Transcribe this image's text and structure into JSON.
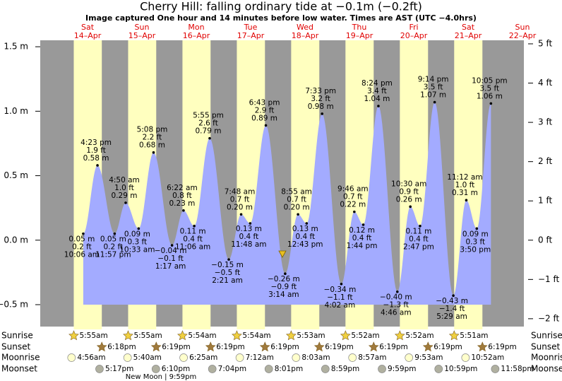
{
  "chart_data": {
    "type": "area",
    "title": "Cherry Hill: falling  ordinary tide at −0.1m (−0.2ft)",
    "subtitle": "Image captured One hour and 14 minutes before low water. Times are AST (UTC −4.0hrs)",
    "days": [
      {
        "weekday": "Sat",
        "date": "14–Apr"
      },
      {
        "weekday": "Sun",
        "date": "15–Apr"
      },
      {
        "weekday": "Mon",
        "date": "16–Apr"
      },
      {
        "weekday": "Tue",
        "date": "17–Apr"
      },
      {
        "weekday": "Wed",
        "date": "18–Apr"
      },
      {
        "weekday": "Thu",
        "date": "19–Apr"
      },
      {
        "weekday": "Fri",
        "date": "20–Apr"
      },
      {
        "weekday": "Sat",
        "date": "21–Apr"
      },
      {
        "weekday": "Sun",
        "date": "22–Apr"
      }
    ],
    "ylim": [
      -0.67,
      1.55
    ],
    "yticks": [
      {
        "value": 1.5,
        "label": "1.5 m"
      },
      {
        "value": 1.0,
        "label": "1.0 m"
      },
      {
        "value": 0.5,
        "label": "0.5 m"
      },
      {
        "value": 0.0,
        "label": "0.0 m"
      },
      {
        "value": -0.5,
        "label": "−0.5 m"
      }
    ],
    "y2lim": [
      -2.2,
      5.09
    ],
    "y2ticks": [
      {
        "value": 5,
        "label": "5 ft"
      },
      {
        "value": 4,
        "label": "4 ft"
      },
      {
        "value": 3,
        "label": "3 ft"
      },
      {
        "value": 2,
        "label": "2 ft"
      },
      {
        "value": 1,
        "label": "1 ft"
      },
      {
        "value": 0,
        "label": "0 ft"
      },
      {
        "value": -1,
        "label": "−1 ft"
      },
      {
        "value": -2,
        "label": "−2 ft"
      }
    ],
    "color": "#a3abff",
    "events": {
      "times": [
        "10:06 am",
        "4:23 pm",
        "11:57 pm",
        "4:50 am",
        "10:33 am",
        "5:08 pm",
        "1:17 am",
        "6:22 am",
        "11:06 am",
        "5:55 pm",
        "2:21 am",
        "7:48 am",
        "11:48 am",
        "6:43 pm",
        "3:14 am",
        "8:55 am",
        "12:43 pm",
        "7:33 pm",
        "4:02 am",
        "9:46 am",
        "1:44 pm",
        "8:24 pm",
        "4:46 am",
        "10:30 am",
        "2:47 pm",
        "9:14 pm",
        "5:29 am",
        "11:12 am",
        "3:50 pm",
        "10:05 pm"
      ],
      "values": [
        0.05,
        0.58,
        0.05,
        0.29,
        0.09,
        0.68,
        -0.04,
        0.23,
        0.11,
        0.79,
        -0.15,
        0.2,
        0.13,
        0.89,
        -0.26,
        0.2,
        0.13,
        0.98,
        -0.34,
        0.22,
        0.12,
        1.04,
        -0.4,
        0.26,
        0.11,
        1.07,
        -0.43,
        0.31,
        0.09,
        1.06
      ],
      "value_labels": [
        "0.05 m",
        "0.58 m",
        "0.05 m",
        "0.29 m",
        "0.09 m",
        "0.68 m",
        "−0.04 m",
        "0.23 m",
        "0.11 m",
        "0.79 m",
        "−0.15 m",
        "0.20 m",
        "0.13 m",
        "0.89 m",
        "−0.26 m",
        "0.20 m",
        "0.13 m",
        "0.98 m",
        "−0.34 m",
        "0.22 m",
        "0.12 m",
        "1.04 m",
        "−0.40 m",
        "0.26 m",
        "0.11 m",
        "1.07 m",
        "−0.43 m",
        "0.31 m",
        "0.09 m",
        "1.06 m"
      ],
      "ft_labels": [
        "0.2 ft",
        "1.9 ft",
        "0.2 ft",
        "1.0 ft",
        "0.3 ft",
        "2.2 ft",
        "−0.1 ft",
        "0.8 ft",
        "0.4 ft",
        "2.6 ft",
        "−0.5 ft",
        "0.7 ft",
        "0.4 ft",
        "2.9 ft",
        "−0.9 ft",
        "0.7 ft",
        "0.4 ft",
        "3.2 ft",
        "−1.1 ft",
        "0.7 ft",
        "0.4 ft",
        "3.4 ft",
        "−1.3 ft",
        "0.9 ft",
        "0.4 ft",
        "3.5 ft",
        "−1.4 ft",
        "1.0 ft",
        "0.3 ft",
        "3.5 ft"
      ]
    },
    "rows": [
      {
        "name": "Sunrise",
        "times": [
          "5:55am",
          "5:55am",
          "5:54am",
          "5:54am",
          "5:53am",
          "5:52am",
          "5:52am",
          "5:51am"
        ]
      },
      {
        "name": "Sunset",
        "times": [
          "6:18pm",
          "6:19pm",
          "6:19pm",
          "6:19pm",
          "6:19pm",
          "6:19pm",
          "6:19pm",
          "6:19pm"
        ]
      },
      {
        "name": "Moonrise",
        "times": [
          "4:56am",
          "5:40am",
          "6:25am",
          "7:12am",
          "8:03am",
          "8:57am",
          "9:53am",
          "10:52am"
        ]
      },
      {
        "name": "Moonset",
        "times": [
          "5:17pm",
          "6:10pm",
          "7:04pm",
          "8:01pm",
          "8:59pm",
          "9:59pm",
          "10:59pm",
          "11:58pm"
        ]
      }
    ],
    "moon_phase": "New Moon | 9:59pm"
  }
}
